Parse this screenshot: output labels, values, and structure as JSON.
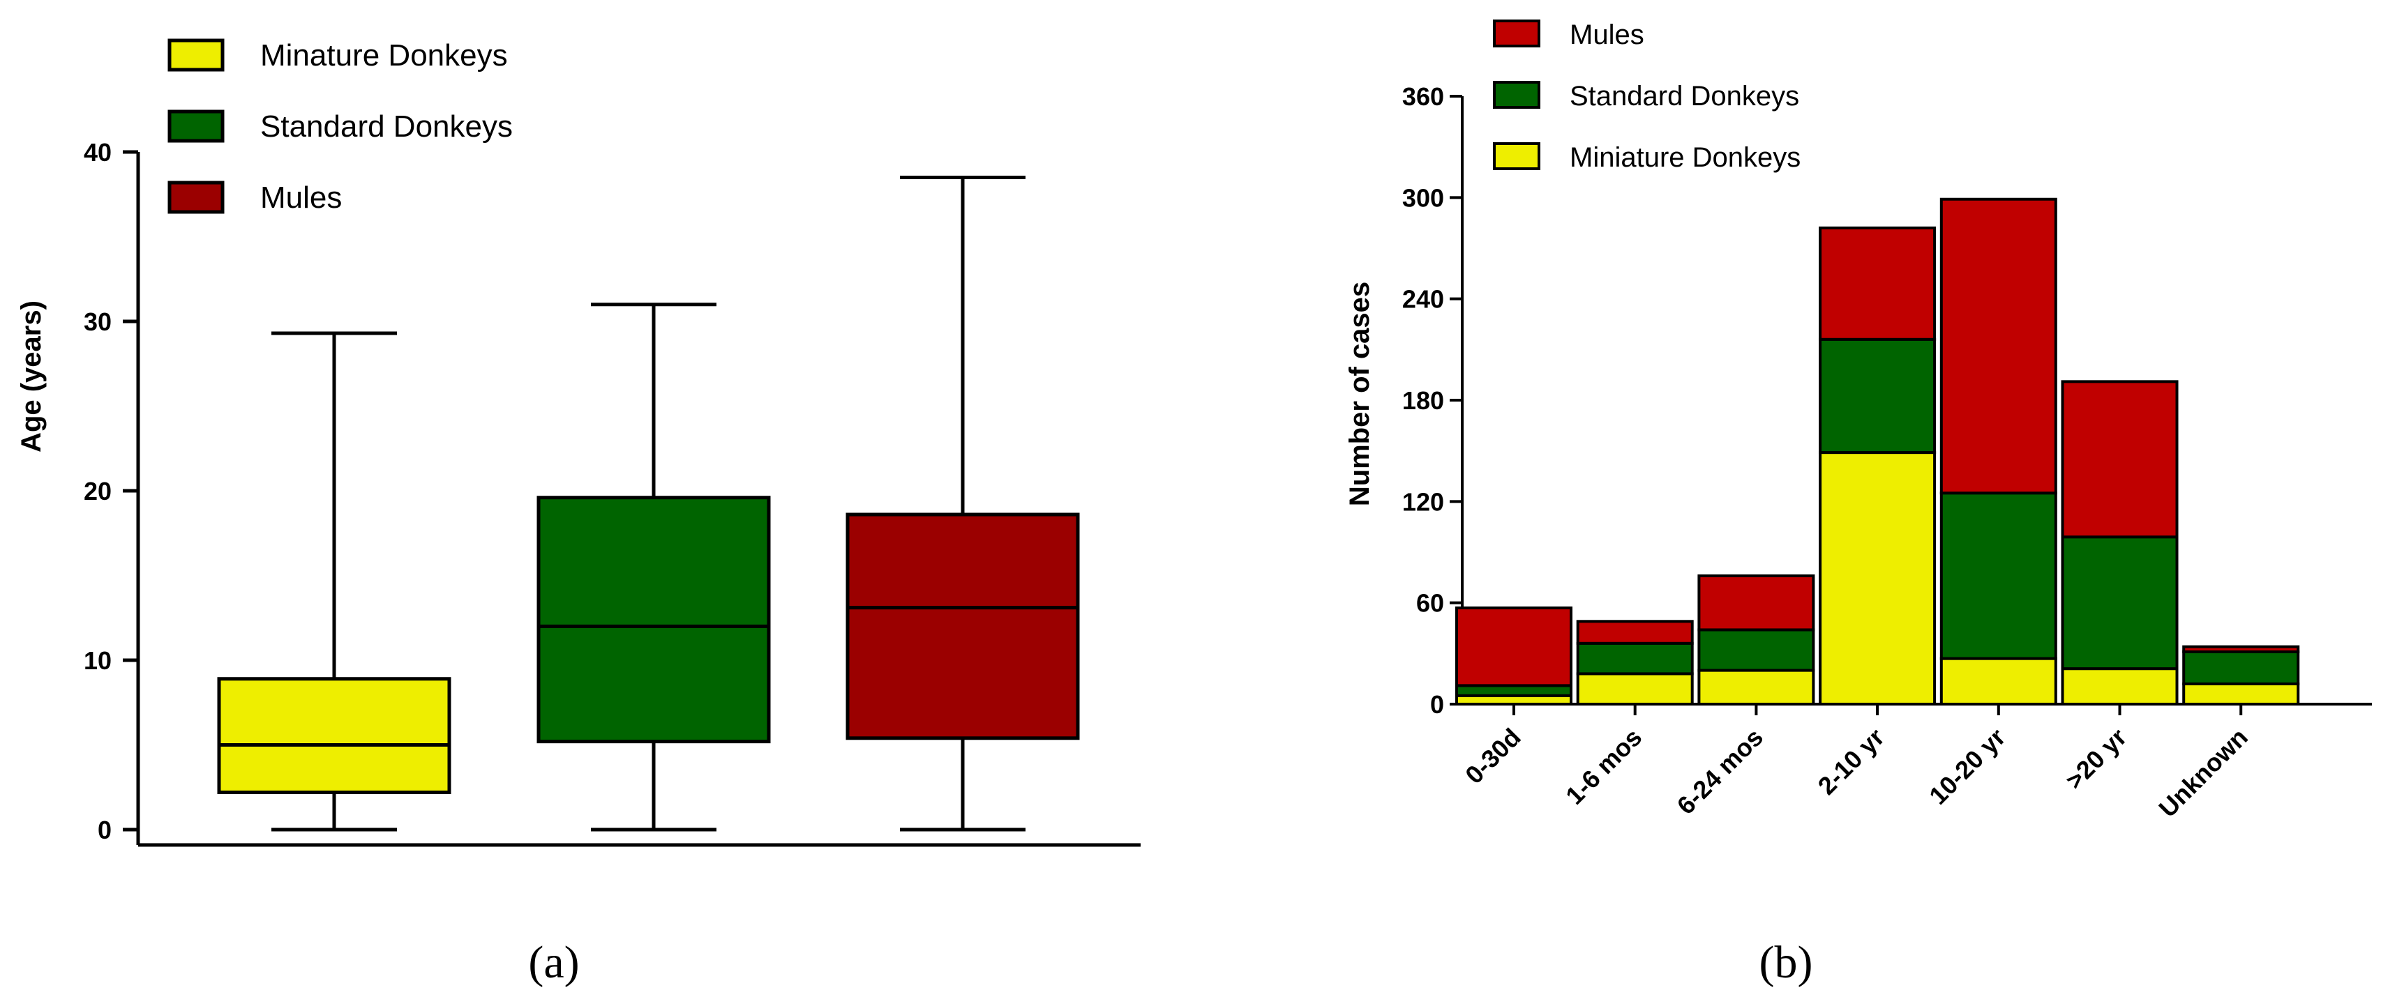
{
  "colors": {
    "miniature": "#EEEE00",
    "standard": "#006400",
    "mules": "#9B0000",
    "mules_bar": "#C00000",
    "axis": "#000000"
  },
  "chart_data": [
    {
      "panel": "a",
      "type": "box",
      "title": "",
      "xlabel": "",
      "ylabel": "Age (years)",
      "ylim": [
        0,
        40
      ],
      "yticks": [
        0,
        10,
        20,
        30,
        40
      ],
      "legend_position": "top-left",
      "series": [
        {
          "name": "Minature Donkeys",
          "min": 0,
          "q1": 2.2,
          "median": 5.0,
          "q3": 8.9,
          "max": 29.3,
          "color": "#EEEE00"
        },
        {
          "name": "Standard Donkeys",
          "min": 0,
          "q1": 5.2,
          "median": 12.0,
          "q3": 19.6,
          "max": 31.0,
          "color": "#006400"
        },
        {
          "name": "Mules",
          "min": 0,
          "q1": 5.4,
          "median": 13.1,
          "q3": 18.6,
          "max": 38.5,
          "color": "#9B0000"
        }
      ]
    },
    {
      "panel": "b",
      "type": "bar",
      "stacked": true,
      "title": "",
      "xlabel": "",
      "ylabel": "Number of cases",
      "ylim": [
        0,
        360
      ],
      "yticks": [
        0,
        60,
        120,
        180,
        240,
        300,
        360
      ],
      "legend_position": "top-left",
      "legend_order": [
        "Mules",
        "Standard Donkeys",
        "Miniature Donkeys"
      ],
      "categories": [
        "0-30d",
        "1-6 mos",
        "6-24 mos",
        "2-10 yr",
        "10-20 yr",
        ">20 yr",
        "Unknown"
      ],
      "series": [
        {
          "name": "Miniature Donkeys",
          "color": "#EEEE00",
          "values": [
            5,
            18,
            20,
            149,
            27,
            21,
            12
          ]
        },
        {
          "name": "Standard Donkeys",
          "color": "#006400",
          "values": [
            6,
            18,
            24,
            67,
            98,
            78,
            19
          ]
        },
        {
          "name": "Mules",
          "color": "#C00000",
          "values": [
            46,
            13,
            32,
            66,
            174,
            92,
            3
          ]
        }
      ]
    }
  ],
  "panel_labels": {
    "a": "(a)",
    "b": "(b)"
  }
}
